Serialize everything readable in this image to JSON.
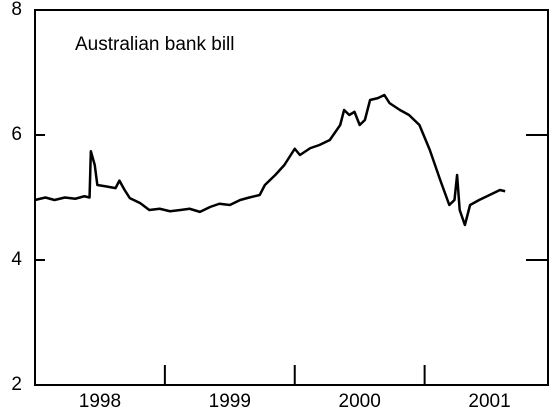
{
  "chart_data": {
    "type": "line",
    "annotation": "Australian bank bill",
    "x": [
      1998.0,
      1998.08,
      1998.15,
      1998.23,
      1998.31,
      1998.38,
      1998.42,
      1998.43,
      1998.46,
      1998.48,
      1998.54,
      1998.62,
      1998.65,
      1998.69,
      1998.73,
      1998.81,
      1998.88,
      1998.96,
      1999.04,
      1999.12,
      1999.19,
      1999.27,
      1999.35,
      1999.42,
      1999.5,
      1999.58,
      1999.65,
      1999.73,
      1999.77,
      1999.85,
      1999.92,
      2000.0,
      2000.04,
      2000.12,
      2000.19,
      2000.27,
      2000.35,
      2000.38,
      2000.42,
      2000.46,
      2000.5,
      2000.54,
      2000.58,
      2000.64,
      2000.69,
      2000.73,
      2000.81,
      2000.88,
      2000.96,
      2001.04,
      2001.12,
      2001.19,
      2001.23,
      2001.25,
      2001.27,
      2001.31,
      2001.35,
      2001.42,
      2001.5,
      2001.58,
      2001.62
    ],
    "series": [
      {
        "name": "Australian bank bill",
        "color": "#000000",
        "values": [
          4.96,
          5.0,
          4.96,
          5.0,
          4.98,
          5.02,
          5.0,
          5.74,
          5.52,
          5.2,
          5.18,
          5.15,
          5.27,
          5.12,
          4.99,
          4.91,
          4.8,
          4.82,
          4.78,
          4.8,
          4.82,
          4.77,
          4.85,
          4.9,
          4.88,
          4.96,
          5.0,
          5.04,
          5.2,
          5.36,
          5.52,
          5.78,
          5.68,
          5.79,
          5.84,
          5.92,
          6.16,
          6.4,
          6.32,
          6.37,
          6.16,
          6.24,
          6.56,
          6.59,
          6.64,
          6.51,
          6.4,
          6.32,
          6.16,
          5.76,
          5.28,
          4.88,
          4.96,
          5.36,
          4.8,
          4.56,
          4.88,
          4.96,
          5.04,
          5.12,
          5.1
        ]
      }
    ],
    "xlim": [
      1998,
      2001.95
    ],
    "xticks": [
      {
        "value": 1998.5,
        "label": "1998"
      },
      {
        "value": 1999.5,
        "label": "1999"
      },
      {
        "value": 2000.5,
        "label": "2000"
      },
      {
        "value": 2001.5,
        "label": "2001"
      }
    ],
    "xtick_marks": [
      1999,
      2000,
      2001
    ],
    "ylim": [
      2,
      8
    ],
    "yticks": [
      2,
      4,
      6,
      8
    ]
  }
}
